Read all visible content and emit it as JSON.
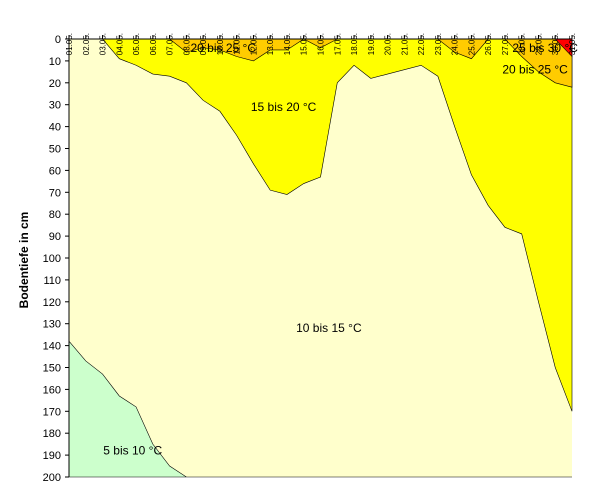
{
  "chart_data": {
    "type": "area",
    "title": "",
    "xlabel": "",
    "ylabel": "Bodentiefe in cm",
    "categories": [
      "01.05.",
      "02.05.",
      "03.05.",
      "04.05.",
      "05.05.",
      "06.05.",
      "07.05.",
      "08.05.",
      "09.05.",
      "10.05.",
      "11.05.",
      "12.05.",
      "13.05.",
      "14.05.",
      "15.05.",
      "16.05.",
      "17.05.",
      "18.05.",
      "19.05.",
      "20.05.",
      "21.05.",
      "22.05.",
      "23.05.",
      "24.05.",
      "25.05.",
      "26.05.",
      "27.05.",
      "28.05.",
      "29.05.",
      "30.05.",
      "31.05."
    ],
    "ylim": [
      0,
      200
    ],
    "y_reversed": true,
    "y_ticks": [
      0,
      10,
      20,
      30,
      40,
      50,
      60,
      70,
      80,
      90,
      100,
      110,
      120,
      130,
      140,
      150,
      160,
      170,
      180,
      190,
      200
    ],
    "grid": false,
    "x_axis_position": "top",
    "series": [
      {
        "name": "10 bis 15 °C",
        "color": "#FFFFCC",
        "label_pos": {
          "day": 15.5,
          "depth": 132
        },
        "values": [
          0,
          0,
          0,
          0,
          0,
          0,
          0,
          0,
          0,
          0,
          0,
          0,
          0,
          0,
          0,
          0,
          0,
          0,
          0,
          0,
          0,
          0,
          0,
          0,
          0,
          0,
          0,
          0,
          0,
          0,
          0
        ]
      },
      {
        "name": "5 bis 10 °C",
        "color": "#CCFFCC",
        "label_pos": {
          "day": 3.8,
          "depth": 188
        },
        "values": [
          138,
          147,
          153,
          163,
          168,
          185,
          195,
          200,
          200,
          200,
          200,
          200,
          200,
          200,
          200,
          200,
          200,
          200,
          200,
          200,
          200,
          200,
          200,
          200,
          200,
          200,
          200,
          200,
          200,
          200,
          200
        ]
      },
      {
        "name": "15 bis 20 °C",
        "color": "#FFFF00",
        "label_pos": {
          "day": 12.8,
          "depth": 31
        },
        "values": [
          0,
          0,
          0,
          9,
          12,
          16,
          17,
          20,
          28,
          33,
          44,
          57,
          69,
          71,
          66,
          63,
          20,
          12,
          18,
          16,
          14,
          12,
          17,
          40,
          62,
          76,
          86,
          89,
          120,
          150,
          170
        ]
      },
      {
        "name": "20 bis 25 °C",
        "color": "#FFCC00",
        "label_pos": {
          "day": 9.2,
          "depth": 4
        },
        "values": [
          0,
          0,
          0,
          0,
          0,
          0,
          0,
          6,
          4,
          5,
          8,
          10,
          5,
          5,
          0,
          4,
          0,
          0,
          0,
          0,
          0,
          0,
          0,
          6,
          9,
          0,
          0,
          8,
          15,
          20,
          22
        ]
      },
      {
        "name": "20 bis 25 °C",
        "color": "#FFCC00",
        "label_pos": {
          "day": 27.8,
          "depth": 14
        },
        "values": [
          0,
          0,
          0,
          0,
          0,
          0,
          0,
          0,
          0,
          0,
          0,
          0,
          0,
          0,
          0,
          0,
          0,
          0,
          0,
          0,
          0,
          0,
          0,
          0,
          0,
          0,
          0,
          0,
          0,
          0,
          0
        ]
      },
      {
        "name": "25 bis 30 °C",
        "color": "#FF0000",
        "label_pos": {
          "day": 28.4,
          "depth": 4
        },
        "values": [
          0,
          0,
          0,
          0,
          0,
          0,
          0,
          0,
          0,
          0,
          0,
          0,
          0,
          0,
          0,
          0,
          0,
          0,
          0,
          0,
          0,
          0,
          0,
          0,
          0,
          0,
          0,
          0,
          0,
          0,
          8
        ]
      }
    ]
  }
}
